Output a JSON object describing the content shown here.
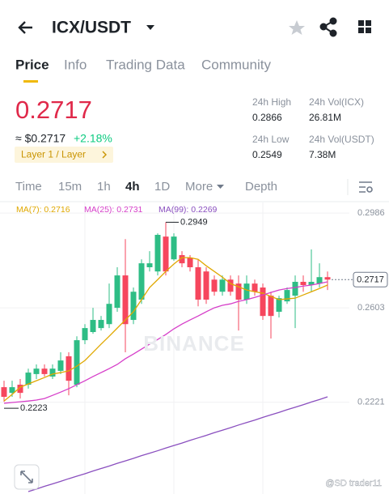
{
  "header": {
    "pair": "ICX/USDT"
  },
  "tabs": [
    "Price",
    "Info",
    "Trading Data",
    "Community"
  ],
  "price": {
    "last": "0.2717",
    "fiat": "≈ $0.2717",
    "change": "+2.18%",
    "tag": "Layer 1 / Layer"
  },
  "stats": [
    {
      "label": "24h High",
      "value": "0.2866"
    },
    {
      "label": "24h Vol(ICX)",
      "value": "26.81M"
    },
    {
      "label": "24h Low",
      "value": "0.2549"
    },
    {
      "label": "24h Vol(USDT)",
      "value": "7.38M"
    }
  ],
  "intervals": [
    "Time",
    "15m",
    "1h",
    "4h",
    "1D",
    "More",
    "Depth"
  ],
  "watermark": "BINANCE",
  "credit": "@SD trader11",
  "chart_data": {
    "type": "candlestick",
    "up_color": "#2ebd85",
    "down_color": "#f6465d",
    "open": [
      0.2282,
      0.2259,
      0.2292,
      0.2292,
      0.2335,
      0.2357,
      0.2325,
      0.2348,
      0.2407,
      0.2292,
      0.2472,
      0.2505,
      0.2521,
      0.2537,
      0.2603,
      0.2734,
      0.2554,
      0.2636,
      0.2767,
      0.275,
      0.2891,
      0.2799,
      0.2816,
      0.2806,
      0.2767,
      0.275,
      0.2717,
      0.2668,
      0.2717,
      0.2701,
      0.2636,
      0.2701,
      0.2685,
      0.2652,
      0.2587,
      0.2629,
      0.2652,
      0.2708,
      0.2695,
      0.2701,
      0.2727
    ],
    "high": [
      0.2308,
      0.2308,
      0.2315,
      0.2357,
      0.2374,
      0.2374,
      0.2374,
      0.2423,
      0.2423,
      0.2488,
      0.2537,
      0.2603,
      0.257,
      0.2701,
      0.2767,
      0.2881,
      0.2685,
      0.2799,
      0.2832,
      0.2904,
      0.2949,
      0.2904,
      0.2832,
      0.2816,
      0.2799,
      0.2767,
      0.2734,
      0.2734,
      0.2734,
      0.2734,
      0.2734,
      0.2717,
      0.2701,
      0.2668,
      0.2652,
      0.2685,
      0.2734,
      0.2734,
      0.2839,
      0.2783,
      0.275
    ],
    "low": [
      0.2223,
      0.2243,
      0.2236,
      0.2276,
      0.2315,
      0.2325,
      0.2315,
      0.2335,
      0.2249,
      0.2282,
      0.2456,
      0.2498,
      0.2511,
      0.2521,
      0.2587,
      0.2423,
      0.2537,
      0.2619,
      0.275,
      0.2734,
      0.2734,
      0.2793,
      0.2767,
      0.275,
      0.2609,
      0.2619,
      0.2652,
      0.2652,
      0.2652,
      0.2511,
      0.2619,
      0.2652,
      0.2554,
      0.2479,
      0.2564,
      0.2619,
      0.2521,
      0.2668,
      0.2668,
      0.2685,
      0.2675
    ],
    "close": [
      0.2243,
      0.2282,
      0.2259,
      0.2341,
      0.2357,
      0.2335,
      0.2357,
      0.239,
      0.2308,
      0.2472,
      0.2521,
      0.2554,
      0.2554,
      0.2619,
      0.2734,
      0.2537,
      0.2668,
      0.2783,
      0.2783,
      0.2898,
      0.275,
      0.2891,
      0.2783,
      0.2767,
      0.2636,
      0.2636,
      0.2668,
      0.2717,
      0.2668,
      0.2636,
      0.2701,
      0.2668,
      0.257,
      0.257,
      0.2642,
      0.2675,
      0.2708,
      0.2695,
      0.2708,
      0.2727,
      0.2717
    ],
    "series": [
      {
        "name": "MA(7): 0.2716",
        "color": "#e0a800",
        "values": [
          0.2226,
          0.2253,
          0.2282,
          0.2295,
          0.2308,
          0.2321,
          0.2335,
          0.2341,
          0.2348,
          0.2367,
          0.239,
          0.2423,
          0.2456,
          0.2488,
          0.2521,
          0.2554,
          0.2587,
          0.2636,
          0.2685,
          0.2717,
          0.275,
          0.278,
          0.2806,
          0.2806,
          0.2799,
          0.2773,
          0.275,
          0.2727,
          0.2701,
          0.2688,
          0.2675,
          0.2668,
          0.2662,
          0.2649,
          0.2636,
          0.2639,
          0.2642,
          0.2655,
          0.2668,
          0.2681,
          0.2695
        ]
      },
      {
        "name": "MA(25): 0.2731",
        "color": "#d63fc9",
        "values": [
          0.2217,
          0.222,
          0.2223,
          0.2226,
          0.223,
          0.2236,
          0.2249,
          0.2262,
          0.2276,
          0.2292,
          0.2308,
          0.2325,
          0.2341,
          0.2357,
          0.2374,
          0.2397,
          0.2416,
          0.2436,
          0.2456,
          0.2475,
          0.2495,
          0.2518,
          0.2537,
          0.2554,
          0.257,
          0.2587,
          0.2603,
          0.2613,
          0.2619,
          0.2629,
          0.2636,
          0.2645,
          0.2655,
          0.2665,
          0.2675,
          0.2681,
          0.2685,
          0.2691,
          0.2695,
          0.2701,
          0.2708
        ]
      },
      {
        "name": "MA(99): 0.2269",
        "color": "#8a4fbf",
        "values": [
          null,
          null,
          null,
          0.186,
          0.187,
          0.1881,
          0.1891,
          0.1901,
          0.1912,
          0.1922,
          0.1932,
          0.1943,
          0.1953,
          0.1963,
          0.1974,
          0.1984,
          0.1994,
          0.2005,
          0.2015,
          0.2025,
          0.2036,
          0.2046,
          0.2056,
          0.2067,
          0.2077,
          0.2087,
          0.2098,
          0.2108,
          0.2118,
          0.2129,
          0.2139,
          0.2149,
          0.216,
          0.217,
          0.218,
          0.2191,
          0.2201,
          0.2211,
          0.2222,
          0.2232,
          0.2243
        ]
      }
    ],
    "ylim": [
      0.185,
      0.3029
    ],
    "yticks": [
      0.2986,
      0.2603,
      0.2221
    ],
    "grid": true
  }
}
